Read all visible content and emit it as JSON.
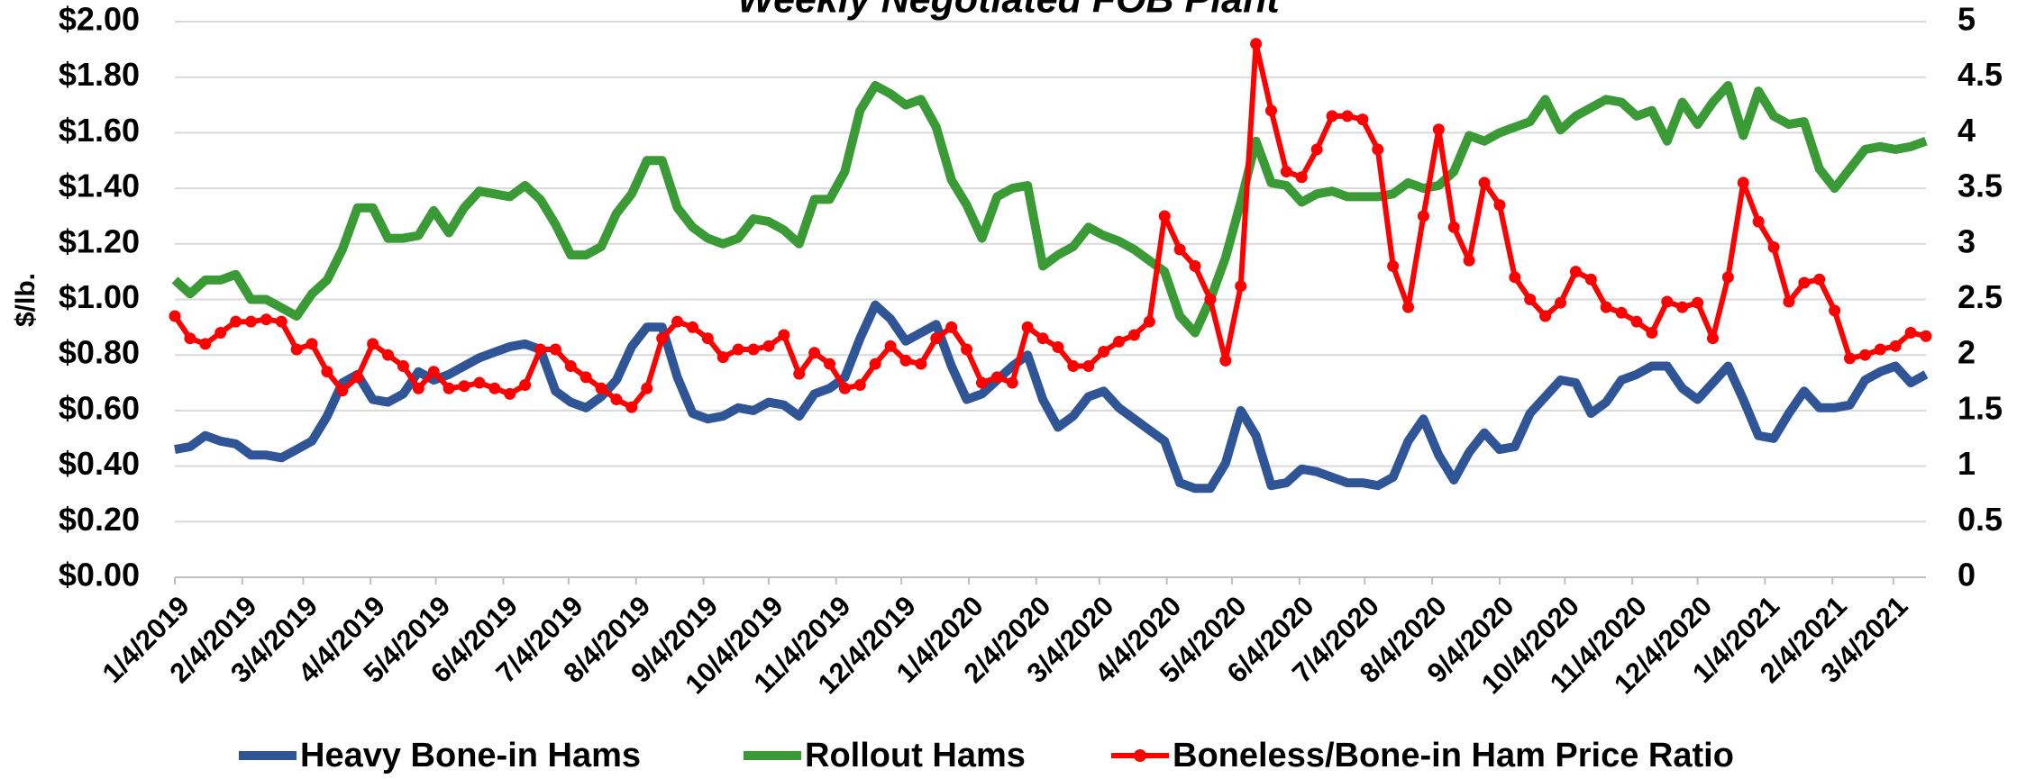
{
  "chart_data": {
    "type": "line",
    "title": "Weekly Negotiated FOB Plant",
    "ylabel": "$/lb.",
    "x": [
      "1/4/2019",
      "1/11/2019",
      "1/18/2019",
      "1/25/2019",
      "2/1/2019",
      "2/8/2019",
      "2/15/2019",
      "2/22/2019",
      "3/1/2019",
      "3/8/2019",
      "3/15/2019",
      "3/22/2019",
      "3/29/2019",
      "4/5/2019",
      "4/12/2019",
      "4/19/2019",
      "4/26/2019",
      "5/3/2019",
      "5/10/2019",
      "5/17/2019",
      "5/24/2019",
      "5/31/2019",
      "6/7/2019",
      "6/14/2019",
      "6/21/2019",
      "6/28/2019",
      "7/5/2019",
      "7/12/2019",
      "7/19/2019",
      "7/26/2019",
      "8/2/2019",
      "8/9/2019",
      "8/16/2019",
      "8/23/2019",
      "8/30/2019",
      "9/6/2019",
      "9/13/2019",
      "9/20/2019",
      "9/27/2019",
      "10/4/2019",
      "10/11/2019",
      "10/18/2019",
      "10/25/2019",
      "11/1/2019",
      "11/8/2019",
      "11/15/2019",
      "11/22/2019",
      "11/29/2019",
      "12/6/2019",
      "12/13/2019",
      "12/20/2019",
      "12/27/2019",
      "1/3/2020",
      "1/10/2020",
      "1/17/2020",
      "1/24/2020",
      "1/31/2020",
      "2/7/2020",
      "2/14/2020",
      "2/21/2020",
      "2/28/2020",
      "3/6/2020",
      "3/13/2020",
      "3/20/2020",
      "3/27/2020",
      "4/3/2020",
      "4/10/2020",
      "4/17/2020",
      "4/24/2020",
      "5/1/2020",
      "5/8/2020",
      "5/15/2020",
      "5/22/2020",
      "5/29/2020",
      "6/5/2020",
      "6/12/2020",
      "6/19/2020",
      "6/26/2020",
      "7/3/2020",
      "7/10/2020",
      "7/17/2020",
      "7/24/2020",
      "7/31/2020",
      "8/7/2020",
      "8/14/2020",
      "8/21/2020",
      "8/28/2020",
      "9/4/2020",
      "9/11/2020",
      "9/18/2020",
      "9/25/2020",
      "10/2/2020",
      "10/9/2020",
      "10/16/2020",
      "10/23/2020",
      "10/30/2020",
      "11/6/2020",
      "11/13/2020",
      "11/20/2020",
      "11/27/2020",
      "12/4/2020",
      "12/11/2020",
      "12/18/2020",
      "12/25/2020",
      "1/1/2021",
      "1/8/2021",
      "1/15/2021",
      "1/22/2021",
      "1/29/2021",
      "2/5/2021",
      "2/12/2021",
      "2/19/2021",
      "2/26/2021",
      "3/5/2021",
      "3/12/2021",
      "3/19/2021"
    ],
    "xticks": [
      "1/4/2019",
      "2/4/2019",
      "3/4/2019",
      "4/4/2019",
      "5/4/2019",
      "6/4/2019",
      "7/4/2019",
      "8/4/2019",
      "9/4/2019",
      "10/4/2019",
      "11/4/2019",
      "12/4/2019",
      "1/4/2020",
      "2/4/2020",
      "3/4/2020",
      "4/4/2020",
      "5/4/2020",
      "6/4/2020",
      "7/4/2020",
      "8/4/2020",
      "9/4/2020",
      "10/4/2020",
      "11/4/2020",
      "12/4/2020",
      "1/4/2021",
      "2/4/2021",
      "3/4/2021"
    ],
    "ylim": [
      0,
      2
    ],
    "yticks": [
      {
        "value": 0,
        "label": "$0.00"
      },
      {
        "value": 0.2,
        "label": "$0.20"
      },
      {
        "value": 0.4,
        "label": "$0.40"
      },
      {
        "value": 0.6,
        "label": "$0.60"
      },
      {
        "value": 0.8,
        "label": "$0.80"
      },
      {
        "value": 1,
        "label": "$1.00"
      },
      {
        "value": 1.2,
        "label": "$1.20"
      },
      {
        "value": 1.4,
        "label": "$1.40"
      },
      {
        "value": 1.6,
        "label": "$1.60"
      },
      {
        "value": 1.8,
        "label": "$1.80"
      },
      {
        "value": 2,
        "label": "$2.00"
      }
    ],
    "y2lim": [
      0,
      5
    ],
    "y2ticks": [
      0,
      0.5,
      1,
      1.5,
      2,
      2.5,
      3,
      3.5,
      4,
      4.5,
      5
    ],
    "grid": true,
    "legend": "bottom",
    "series": [
      {
        "name": "Heavy Bone-in Hams",
        "color": "#2f5597",
        "markers": false,
        "values": [
          0.46,
          0.47,
          0.51,
          0.49,
          0.48,
          0.44,
          0.44,
          0.43,
          0.46,
          0.49,
          0.58,
          0.7,
          0.73,
          0.64,
          0.63,
          0.66,
          0.74,
          0.71,
          0.73,
          0.76,
          0.79,
          0.81,
          0.83,
          0.84,
          0.82,
          0.67,
          0.63,
          0.61,
          0.65,
          0.71,
          0.83,
          0.9,
          0.9,
          0.72,
          0.59,
          0.57,
          0.58,
          0.61,
          0.6,
          0.63,
          0.62,
          0.58,
          0.66,
          0.68,
          0.72,
          0.86,
          0.98,
          0.93,
          0.85,
          0.88,
          0.91,
          0.76,
          0.64,
          0.66,
          0.71,
          0.76,
          0.8,
          0.64,
          0.54,
          0.58,
          0.65,
          0.67,
          0.61,
          0.57,
          0.53,
          0.49,
          0.34,
          0.32,
          0.32,
          0.41,
          0.6,
          0.51,
          0.33,
          0.34,
          0.39,
          0.38,
          0.36,
          0.34,
          0.34,
          0.33,
          0.36,
          0.49,
          0.57,
          0.44,
          0.35,
          0.45,
          0.52,
          0.46,
          0.47,
          0.59,
          0.65,
          0.71,
          0.7,
          0.59,
          0.63,
          0.71,
          0.73,
          0.76,
          0.76,
          0.68,
          0.64,
          0.7,
          0.76,
          0.64,
          0.51,
          0.5,
          0.59,
          0.67,
          0.61,
          0.61,
          0.62,
          0.71,
          0.74,
          0.76,
          0.7,
          0.73
        ]
      },
      {
        "name": "Rollout Hams",
        "color": "#3a9a35",
        "markers": false,
        "values": [
          1.07,
          1.02,
          1.07,
          1.07,
          1.09,
          1.0,
          1.0,
          0.97,
          0.94,
          1.02,
          1.07,
          1.18,
          1.33,
          1.33,
          1.22,
          1.22,
          1.23,
          1.32,
          1.24,
          1.33,
          1.39,
          1.38,
          1.37,
          1.41,
          1.36,
          1.27,
          1.16,
          1.16,
          1.19,
          1.31,
          1.38,
          1.5,
          1.5,
          1.33,
          1.26,
          1.22,
          1.2,
          1.22,
          1.29,
          1.28,
          1.25,
          1.2,
          1.36,
          1.36,
          1.46,
          1.68,
          1.77,
          1.74,
          1.7,
          1.72,
          1.62,
          1.43,
          1.34,
          1.22,
          1.37,
          1.4,
          1.41,
          1.12,
          1.16,
          1.19,
          1.26,
          1.23,
          1.21,
          1.18,
          1.14,
          1.1,
          0.94,
          0.88,
          1.0,
          1.15,
          1.35,
          1.57,
          1.42,
          1.41,
          1.35,
          1.38,
          1.39,
          1.37,
          1.37,
          1.37,
          1.38,
          1.42,
          1.4,
          1.41,
          1.46,
          1.59,
          1.57,
          1.6,
          1.62,
          1.64,
          1.72,
          1.61,
          1.66,
          1.69,
          1.72,
          1.71,
          1.66,
          1.68,
          1.57,
          1.71,
          1.63,
          1.71,
          1.77,
          1.59,
          1.75,
          1.66,
          1.63,
          1.64,
          1.47,
          1.4,
          1.47,
          1.54,
          1.55,
          1.54,
          1.55,
          1.57
        ]
      },
      {
        "name": "Boneless/Bone-in Ham Price Ratio",
        "color": "#ff0000",
        "markers": true,
        "axis": "y2",
        "values": [
          2.35,
          2.15,
          2.1,
          2.2,
          2.3,
          2.3,
          2.32,
          2.3,
          2.05,
          2.1,
          1.85,
          1.68,
          1.8,
          2.1,
          2.0,
          1.9,
          1.7,
          1.85,
          1.7,
          1.72,
          1.75,
          1.7,
          1.65,
          1.73,
          2.05,
          2.05,
          1.9,
          1.8,
          1.7,
          1.6,
          1.53,
          1.7,
          2.15,
          2.3,
          2.25,
          2.15,
          1.98,
          2.05,
          2.05,
          2.08,
          2.18,
          1.83,
          2.02,
          1.92,
          1.7,
          1.73,
          1.92,
          2.08,
          1.95,
          1.92,
          2.15,
          2.25,
          2.05,
          1.75,
          1.8,
          1.75,
          2.25,
          2.15,
          2.07,
          1.9,
          1.9,
          2.03,
          2.12,
          2.18,
          2.3,
          3.25,
          2.95,
          2.8,
          2.5,
          1.95,
          2.62,
          4.8,
          4.2,
          3.65,
          3.6,
          3.85,
          4.15,
          4.15,
          4.12,
          3.85,
          2.8,
          2.43,
          3.25,
          4.03,
          3.15,
          2.85,
          3.55,
          3.35,
          2.7,
          2.5,
          2.35,
          2.47,
          2.75,
          2.68,
          2.43,
          2.38,
          2.3,
          2.2,
          2.48,
          2.43,
          2.47,
          2.15,
          2.7,
          3.55,
          3.2,
          2.97,
          2.48,
          2.65,
          2.68,
          2.4,
          1.97,
          2.0,
          2.05,
          2.08,
          2.2,
          2.17
        ]
      }
    ]
  }
}
